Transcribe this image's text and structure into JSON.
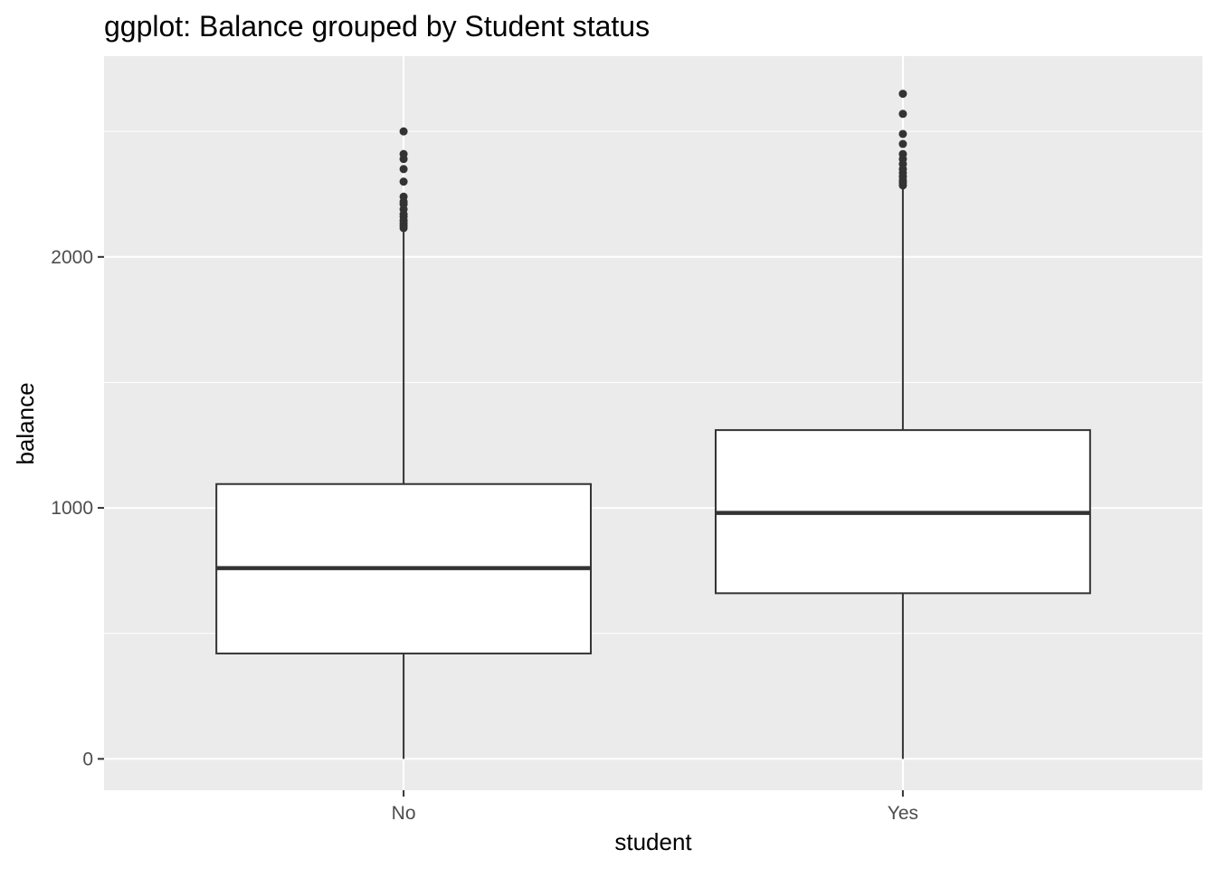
{
  "chart_data": {
    "type": "boxplot",
    "title": "ggplot: Balance grouped by Student status",
    "xlabel": "student",
    "ylabel": "balance",
    "categories": [
      "No",
      "Yes"
    ],
    "ylim": [
      -125,
      2800
    ],
    "yticks": [
      0,
      1000,
      2000
    ],
    "ytick_labels": [
      "0",
      "1000",
      "2000"
    ],
    "boxes": [
      {
        "category": "No",
        "whisker_low": 0,
        "q1": 420,
        "median": 760,
        "q3": 1095,
        "whisker_high": 2110,
        "outliers": [
          2115,
          2125,
          2135,
          2145,
          2160,
          2170,
          2190,
          2210,
          2220,
          2240,
          2300,
          2350,
          2390,
          2410,
          2500
        ]
      },
      {
        "category": "Yes",
        "whisker_low": 0,
        "q1": 660,
        "median": 980,
        "q3": 1310,
        "whisker_high": 2280,
        "outliers": [
          2285,
          2295,
          2305,
          2320,
          2335,
          2350,
          2370,
          2390,
          2410,
          2450,
          2490,
          2570,
          2650
        ]
      }
    ],
    "grid": true,
    "legend": "none",
    "colors": {
      "panel_background": "#ebebeb",
      "grid_major": "#ffffff",
      "box_fill": "#ffffff",
      "box_line": "#333333"
    }
  }
}
